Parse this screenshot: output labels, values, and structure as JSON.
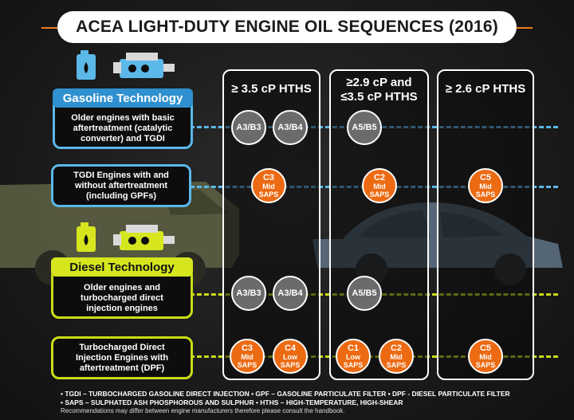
{
  "title": "ACEA LIGHT-DUTY ENGINE OIL SEQUENCES (2016)",
  "colors": {
    "gasoline": "#5bb8e8",
    "diesel": "#c9dc18",
    "mid_saps": "#ec6a12",
    "legacy": "#6b6b6b"
  },
  "columns": [
    {
      "label": "≥ 3.5 cP HTHS"
    },
    {
      "label_line1": "≥2.9 cP and",
      "label_line2": "≤3.5 cP HTHS"
    },
    {
      "label": "≥ 2.6 cP HTHS"
    }
  ],
  "gasoline": {
    "label": "Gasoline Technology",
    "icons": [
      "fuel-can-icon",
      "engine-icon"
    ],
    "row1": {
      "text1": "Older engines with basic",
      "text2": "aftertreatment (catalytic",
      "text3": "converter) and TGDI"
    },
    "row2": {
      "text1": "TGDI Engines with and",
      "text2": "without aftertreatment",
      "text3": "(including GPFs)"
    }
  },
  "diesel": {
    "label": "Diesel Technology",
    "icons": [
      "fuel-can-icon",
      "engine-icon"
    ],
    "row1": {
      "text1": "Older engines and",
      "text2": "turbocharged direct",
      "text3": "injection engines"
    },
    "row2": {
      "text1": "Turbocharged Direct",
      "text2": "Injection Engines with",
      "text3": "aftertreatment (DPF)"
    }
  },
  "cells": {
    "g1_a": "A3/B3",
    "g1_b": "A3/B4",
    "g1_c": "A5/B5",
    "g2_a": "C3",
    "g2_a_sub": "Mid SAPS",
    "g2_b": "C2",
    "g2_b_sub": "Mid SAPS",
    "g2_c": "C5",
    "g2_c_sub": "Mid SAPS",
    "d1_a": "A3/B3",
    "d1_b": "A3/B4",
    "d1_c": "A5/B5",
    "d2_a": "C3",
    "d2_a_sub": "Mid SAPS",
    "d2_b": "C4",
    "d2_b_sub": "Low SAPS",
    "d2_c": "C1",
    "d2_c_sub": "Low SAPS",
    "d2_d": "C2",
    "d2_d_sub": "Mid SAPS",
    "d2_e": "C5",
    "d2_e_sub": "Mid SAPS"
  },
  "footer": {
    "line1": "• TGDI – TURBOCHARGED GASOLINE DIRECT INJECTION  •  GPF – GASOLINE PARTICULATE FILTER  •  DPF - DIESEL PARTICULATE FILTER",
    "line2": "• SAPS – SULPHATED ASH PHOSPHOROUS AND SULPHUR  •  HTHS – HIGH-TEMPERATURE, HIGH-SHEAR",
    "note": "Recommendations may differ between engine manufacturers therefore please consult the handbook."
  }
}
